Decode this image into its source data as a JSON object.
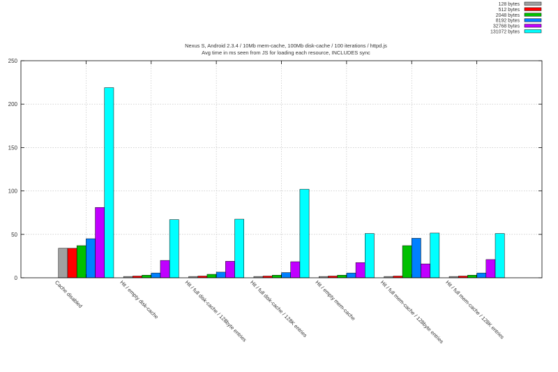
{
  "chart_data": {
    "type": "bar",
    "title": "Nexus S, Android 2.3.4 / 10Mb mem-cache, 100Mb disk-cache / 100 iterations / httpd.js",
    "subtitle": "Avg time in ms seen from JS for loading each resource, INCLUDES sync",
    "xlabel": "",
    "ylabel": "",
    "ylim": [
      0,
      250
    ],
    "yticks": [
      0,
      50,
      100,
      150,
      200,
      250
    ],
    "grid": true,
    "legend_position": "top-right",
    "categories": [
      "Cache disabled",
      "Hit / empty disk-cache",
      "Hit / full disk-cache / 128byte entries",
      "Hit / full disk-cache / 128K entries",
      "Hit / empty mem-cache",
      "Hit / full mem-cache / 128byte entries",
      "Hit / full mem-cache / 128K entries"
    ],
    "series": [
      {
        "name": "128 bytes",
        "color": "#a0a0a0",
        "values": [
          34,
          1.5,
          1.5,
          1.5,
          1.5,
          1.5,
          1.5
        ]
      },
      {
        "name": "512 bytes",
        "color": "#ff0000",
        "values": [
          34,
          2,
          2,
          2,
          2,
          2,
          2
        ]
      },
      {
        "name": "2048 bytes",
        "color": "#00c000",
        "values": [
          37,
          3,
          4,
          3,
          3,
          37,
          3
        ]
      },
      {
        "name": "8192 bytes",
        "color": "#0080ff",
        "values": [
          45,
          5.5,
          6.5,
          6,
          5.5,
          45.5,
          5.5
        ]
      },
      {
        "name": "32768 bytes",
        "color": "#c000ff",
        "values": [
          81,
          20,
          19,
          18.5,
          17.5,
          16,
          21
        ]
      },
      {
        "name": "131072 bytes",
        "color": "#00ffff",
        "values": [
          219,
          67,
          67.5,
          102,
          51,
          51.5,
          51
        ]
      }
    ]
  }
}
